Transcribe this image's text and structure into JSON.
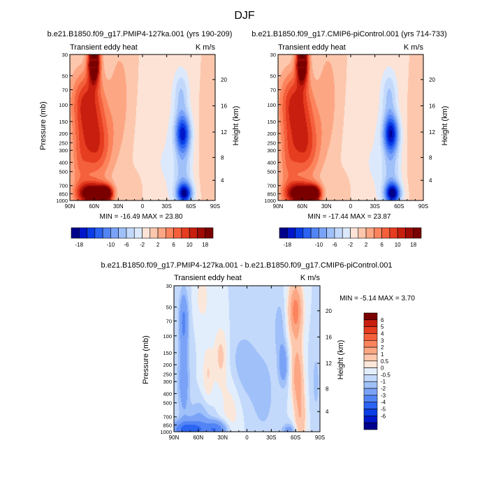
{
  "figure_title": "DJF",
  "chart_data": [
    {
      "type": "contour",
      "title": "b.e21.B1850.f09_g17.PMIP4-127ka.001 (yrs 190-209)",
      "left_string": "Transient eddy heat",
      "right_string": "K m/s",
      "ylabel": "Pressure (mb)",
      "ylabel_right": "Height (km)",
      "xlim": [
        90,
        -90
      ],
      "x_ticks": [
        "90N",
        "60N",
        "30N",
        "0",
        "30S",
        "60S",
        "90S"
      ],
      "y_ticks": [
        "30",
        "50",
        "70",
        "100",
        "150",
        "200",
        "250",
        "300",
        "400",
        "500",
        "700",
        "850",
        "1000"
      ],
      "y_ticks_right": [
        "20",
        "16",
        "12",
        "8",
        "4"
      ],
      "minmax_text": "MIN = -16.49   MAX =  23.80",
      "colorbar_labels": [
        "-18",
        "-10",
        "-6",
        "-2",
        "2",
        "6",
        "10",
        "18"
      ],
      "features": [
        {
          "lat": 60,
          "p": 35,
          "amp": 22,
          "sx": 5,
          "sy": 0.35
        },
        {
          "lat": 62,
          "p": 850,
          "amp": 18,
          "sx": 12,
          "sy": 0.18
        },
        {
          "lat": 45,
          "p": 850,
          "amp": 16,
          "sx": 6,
          "sy": 0.14
        },
        {
          "lat": 58,
          "p": 260,
          "amp": 10,
          "sx": 14,
          "sy": 0.6
        },
        {
          "lat": 68,
          "p": 90,
          "amp": 9,
          "sx": 14,
          "sy": 0.5
        },
        {
          "lat": 78,
          "p": 400,
          "amp": 4,
          "sx": 8,
          "sy": 1.0
        },
        {
          "lat": 28,
          "p": 80,
          "amp": 3,
          "sx": 9,
          "sy": 0.9
        },
        {
          "lat": -50,
          "p": 200,
          "amp": -15,
          "sx": 7,
          "sy": 0.32
        },
        {
          "lat": -52,
          "p": 850,
          "amp": -16,
          "sx": 7,
          "sy": 0.18
        },
        {
          "lat": -48,
          "p": 80,
          "amp": -6,
          "sx": 7,
          "sy": 0.45
        },
        {
          "lat": -50,
          "p": 500,
          "amp": -6,
          "sx": 8,
          "sy": 0.5
        },
        {
          "lat": -25,
          "p": 400,
          "amp": -2,
          "sx": 18,
          "sy": 1.2
        },
        {
          "lat": -80,
          "p": 350,
          "amp": 1.5,
          "sx": 6,
          "sy": 0.8
        },
        {
          "lat": 10,
          "p": 800,
          "amp": 1.5,
          "sx": 8,
          "sy": 0.3
        }
      ]
    },
    {
      "type": "contour",
      "title": "b.e21.B1850.f09_g17.CMIP6-piControl.001 (yrs 714-733)",
      "left_string": "Transient eddy heat",
      "right_string": "K m/s",
      "ylabel": "",
      "ylabel_right": "Height (km)",
      "xlim": [
        90,
        -90
      ],
      "x_ticks": [
        "90N",
        "60N",
        "30N",
        "0",
        "30S",
        "60S",
        "90S"
      ],
      "y_ticks": [
        "30",
        "50",
        "70",
        "100",
        "150",
        "200",
        "250",
        "300",
        "400",
        "500",
        "700",
        "850",
        "1000"
      ],
      "y_ticks_right": [
        "20",
        "16",
        "12",
        "8",
        "4"
      ],
      "minmax_text": "MIN = -17.44   MAX =  23.87",
      "colorbar_labels": [
        "-18",
        "-10",
        "-6",
        "-2",
        "2",
        "6",
        "10",
        "18"
      ],
      "features": [
        {
          "lat": 60,
          "p": 35,
          "amp": 22,
          "sx": 5,
          "sy": 0.35
        },
        {
          "lat": 62,
          "p": 850,
          "amp": 18,
          "sx": 12,
          "sy": 0.18
        },
        {
          "lat": 45,
          "p": 850,
          "amp": 16,
          "sx": 6,
          "sy": 0.14
        },
        {
          "lat": 58,
          "p": 260,
          "amp": 10,
          "sx": 14,
          "sy": 0.6
        },
        {
          "lat": 68,
          "p": 90,
          "amp": 9,
          "sx": 14,
          "sy": 0.5
        },
        {
          "lat": 78,
          "p": 400,
          "amp": 4,
          "sx": 8,
          "sy": 1.0
        },
        {
          "lat": 28,
          "p": 80,
          "amp": 3,
          "sx": 9,
          "sy": 0.9
        },
        {
          "lat": -50,
          "p": 200,
          "amp": -16,
          "sx": 7,
          "sy": 0.32
        },
        {
          "lat": -52,
          "p": 850,
          "amp": -17,
          "sx": 7,
          "sy": 0.18
        },
        {
          "lat": -48,
          "p": 80,
          "amp": -6,
          "sx": 7,
          "sy": 0.45
        },
        {
          "lat": -50,
          "p": 500,
          "amp": -6,
          "sx": 8,
          "sy": 0.5
        },
        {
          "lat": -25,
          "p": 400,
          "amp": -2,
          "sx": 18,
          "sy": 1.2
        },
        {
          "lat": -80,
          "p": 350,
          "amp": 1.5,
          "sx": 6,
          "sy": 0.8
        },
        {
          "lat": 10,
          "p": 800,
          "amp": 1.5,
          "sx": 8,
          "sy": 0.3
        }
      ]
    },
    {
      "type": "contour",
      "title": "b.e21.B1850.f09_g17.PMIP4-127ka.001 - b.e21.B1850.f09_g17.CMIP6-piControl.001",
      "left_string": "Transient eddy heat",
      "right_string": "K m/s",
      "ylabel": "Pressure (mb)",
      "ylabel_right": "Height (km)",
      "xlim": [
        90,
        -90
      ],
      "x_ticks": [
        "90N",
        "60N",
        "30N",
        "0",
        "30S",
        "60S",
        "90S"
      ],
      "y_ticks": [
        "30",
        "50",
        "70",
        "100",
        "150",
        "200",
        "250",
        "300",
        "400",
        "500",
        "700",
        "850",
        "1000"
      ],
      "y_ticks_right": [
        "20",
        "16",
        "12",
        "8",
        "4"
      ],
      "minmax_text": "MIN = -5.14   MAX =   3.70",
      "colorbar_labels": [
        "6",
        "5",
        "4",
        "3",
        "2",
        "1",
        "0.5",
        "0",
        "-0.5",
        "-1",
        "-2",
        "-3",
        "-4",
        "-5",
        "-6"
      ],
      "features": [
        {
          "lat": -60,
          "p": 55,
          "amp": 3.5,
          "sx": 6,
          "sy": 0.5
        },
        {
          "lat": -62,
          "p": 250,
          "amp": 2.6,
          "sx": 5,
          "sy": 0.5
        },
        {
          "lat": -66,
          "p": 700,
          "amp": 1.8,
          "sx": 5,
          "sy": 0.5
        },
        {
          "lat": -45,
          "p": 200,
          "amp": -1.6,
          "sx": 4,
          "sy": 0.35
        },
        {
          "lat": -40,
          "p": 80,
          "amp": -0.8,
          "sx": 5,
          "sy": 0.5
        },
        {
          "lat": 78,
          "p": 70,
          "amp": -2.2,
          "sx": 4,
          "sy": 0.5
        },
        {
          "lat": 78,
          "p": 300,
          "amp": -1.6,
          "sx": 5,
          "sy": 0.6
        },
        {
          "lat": 72,
          "p": 950,
          "amp": -3.5,
          "sx": 14,
          "sy": 0.15
        },
        {
          "lat": 38,
          "p": 950,
          "amp": -2.8,
          "sx": 10,
          "sy": 0.15
        },
        {
          "lat": 58,
          "p": 700,
          "amp": -1.0,
          "sx": 10,
          "sy": 0.3
        },
        {
          "lat": 48,
          "p": 250,
          "amp": 1.0,
          "sx": 5,
          "sy": 0.5
        },
        {
          "lat": 32,
          "p": 160,
          "amp": 1.2,
          "sx": 6,
          "sy": 0.5
        },
        {
          "lat": 20,
          "p": 600,
          "amp": 0.8,
          "sx": 9,
          "sy": 0.6
        },
        {
          "lat": 55,
          "p": 40,
          "amp": 0.8,
          "sx": 6,
          "sy": 0.4
        },
        {
          "lat": 5,
          "p": 200,
          "amp": -0.8,
          "sx": 12,
          "sy": 0.6
        },
        {
          "lat": -20,
          "p": 400,
          "amp": -0.7,
          "sx": 12,
          "sy": 0.8
        },
        {
          "lat": -85,
          "p": 300,
          "amp": -0.6,
          "sx": 5,
          "sy": 0.8
        },
        {
          "lat": -52,
          "p": 980,
          "amp": -1.5,
          "sx": 6,
          "sy": 0.12
        }
      ]
    }
  ],
  "palette_main": [
    "#00008b",
    "#0016c9",
    "#0b3de6",
    "#2b63f2",
    "#5384f5",
    "#7aa3f7",
    "#9fc0f9",
    "#c3d9fb",
    "#dce9fc",
    "#fce3d6",
    "#fcc7ad",
    "#fca684",
    "#fc845d",
    "#f4603c",
    "#e63c20",
    "#c81e0f",
    "#9e0b05",
    "#7a0000"
  ],
  "levels_main": [
    -18,
    -16,
    -14,
    -12,
    -10,
    -8,
    -6,
    -4,
    -2,
    0,
    2,
    4,
    6,
    8,
    10,
    12,
    14,
    16
  ],
  "palette_diff": [
    "#00008b",
    "#0016c9",
    "#0b3de6",
    "#2b63f2",
    "#5384f5",
    "#7aa3f7",
    "#9fc0f9",
    "#c3d9fb",
    "#e2eefc",
    "#fbe6da",
    "#fcc7ad",
    "#fca684",
    "#fc845d",
    "#f4603c",
    "#e63c20",
    "#c81e0f",
    "#7a0000"
  ],
  "levels_diff": [
    -6,
    -5,
    -4,
    -3,
    -2,
    -1,
    -0.5,
    0,
    0.5,
    1,
    2,
    3,
    4,
    5,
    6
  ]
}
